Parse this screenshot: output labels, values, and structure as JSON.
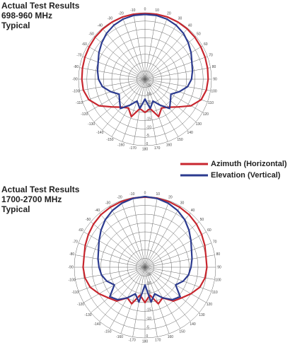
{
  "chart_data": [
    {
      "type": "polar",
      "title": [
        "Actual Test Results",
        "698-960 MHz",
        "Typical"
      ],
      "theta": [
        0,
        10,
        20,
        30,
        40,
        50,
        60,
        70,
        80,
        90,
        100,
        110,
        120,
        130,
        140,
        150,
        160,
        170,
        180,
        -170,
        -160,
        -150,
        -140,
        -130,
        -120,
        -110,
        -100,
        -90,
        -80,
        -70,
        -60,
        -50,
        -40,
        -30,
        -20,
        -10
      ],
      "thetaticks": [
        0,
        10,
        20,
        30,
        40,
        50,
        60,
        70,
        80,
        90,
        100,
        110,
        120,
        130,
        140,
        150,
        160,
        170,
        180,
        -170,
        -160,
        -150,
        -140,
        -130,
        -120,
        -110,
        -100,
        -90,
        -80,
        -70,
        -60,
        -50,
        -40,
        -30,
        -20,
        -10
      ],
      "rlim": [
        -40,
        0
      ],
      "rticks": [
        0,
        -5,
        -10,
        -15,
        -20,
        -25,
        -30,
        -35
      ],
      "series": [
        {
          "name": "Azimuth (Horizontal)",
          "color": "#c8262e",
          "values": [
            -0.5,
            -0.3,
            -0.2,
            -0.3,
            -0.5,
            -0.8,
            -1.2,
            -1.5,
            -1.8,
            -2,
            -2.5,
            -4,
            -8,
            -14,
            -18,
            -20,
            -16,
            -22,
            -20,
            -22,
            -16,
            -20,
            -18,
            -14,
            -8,
            -4,
            -2.3,
            -2,
            -1.8,
            -1.5,
            -1.2,
            -0.8,
            -0.5,
            -0.3,
            -0.2,
            -0.3
          ]
        },
        {
          "name": "Elevation (Vertical)",
          "color": "#2b3a8f",
          "values": [
            -1,
            -1,
            -1.5,
            -2.5,
            -4,
            -6,
            -8,
            -10,
            -11,
            -12,
            -14,
            -18,
            -22,
            -20,
            -17,
            -22,
            -26,
            -22,
            -28,
            -22,
            -26,
            -22,
            -17,
            -20,
            -22,
            -18,
            -14,
            -12,
            -11,
            -10,
            -8,
            -6,
            -4,
            -2.5,
            -1.5,
            -1
          ]
        }
      ]
    },
    {
      "type": "polar",
      "title": [
        "Actual Test Results",
        "1700-2700 MHz",
        "Typical"
      ],
      "theta": [
        0,
        10,
        20,
        30,
        40,
        50,
        60,
        70,
        80,
        90,
        100,
        110,
        120,
        130,
        140,
        150,
        160,
        170,
        180,
        -170,
        -160,
        -150,
        -140,
        -130,
        -120,
        -110,
        -100,
        -90,
        -80,
        -70,
        -60,
        -50,
        -40,
        -30,
        -20,
        -10
      ],
      "thetaticks": [
        0,
        10,
        20,
        30,
        40,
        50,
        60,
        70,
        80,
        90,
        100,
        110,
        120,
        130,
        140,
        150,
        160,
        170,
        180,
        -170,
        -160,
        -150,
        -140,
        -130,
        -120,
        -110,
        -100,
        -90,
        -80,
        -70,
        -60,
        -50,
        -40,
        -30,
        -20,
        -10
      ],
      "rlim": [
        -40,
        0
      ],
      "rticks": [
        0,
        -5,
        -10,
        -15,
        -20,
        -25,
        -30,
        -35
      ],
      "series": [
        {
          "color": "#c8262e",
          "values": [
            -0.3,
            -0.3,
            -0.5,
            -0.8,
            -1.2,
            -2,
            -3,
            -4,
            -5,
            -5,
            -5.5,
            -7,
            -10,
            -13,
            -15,
            -20,
            -18,
            -24,
            -20,
            -24,
            -18,
            -20,
            -15,
            -13,
            -10,
            -7,
            -5.5,
            -5,
            -5,
            -4,
            -3,
            -2,
            -1.2,
            -0.8,
            -0.5,
            -0.3
          ]
        },
        {
          "color": "#2b3a8f",
          "values": [
            0,
            -0.5,
            -1.5,
            -3,
            -5,
            -7.5,
            -10,
            -12,
            -13,
            -14,
            -15,
            -17,
            -20,
            -14,
            -16,
            -20,
            -24,
            -20,
            -30,
            -20,
            -24,
            -20,
            -16,
            -14,
            -20,
            -17,
            -15,
            -14,
            -13,
            -12,
            -10,
            -7.5,
            -5,
            -3,
            -1.5,
            -0.5
          ]
        }
      ]
    }
  ]
}
